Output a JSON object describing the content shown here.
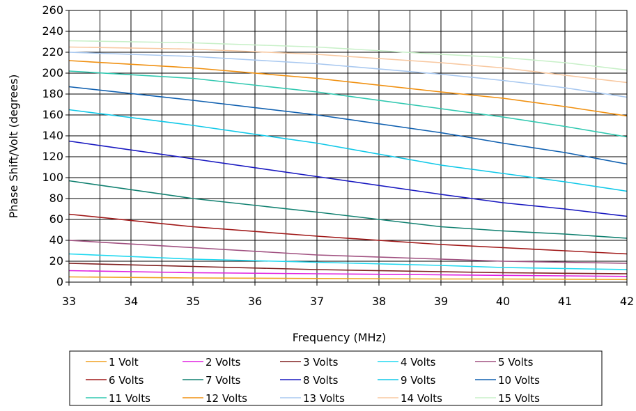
{
  "chart_data": {
    "type": "line",
    "title": "",
    "xlabel": "Frequency (MHz)",
    "ylabel": "Phase Shift/Volt (degrees)",
    "xlim": [
      33,
      42
    ],
    "ylim": [
      0,
      260
    ],
    "x_ticks": [
      "33",
      "34",
      "35",
      "36",
      "37",
      "38",
      "39",
      "40",
      "41",
      "42"
    ],
    "y_ticks": [
      "0",
      "20",
      "40",
      "60",
      "80",
      "100",
      "120",
      "140",
      "160",
      "180",
      "200",
      "220",
      "240",
      "260"
    ],
    "x_minor_step": 0.5,
    "grid": true,
    "legend_position": "bottom",
    "x": [
      33,
      35,
      37,
      39,
      40,
      41,
      42
    ],
    "series": [
      {
        "name": "1 Volt",
        "color": "#F0A020",
        "values": [
          5,
          4,
          3.5,
          3,
          3,
          2.8,
          2.5
        ]
      },
      {
        "name": "2 Volts",
        "color": "#E020E0",
        "values": [
          11,
          9,
          8,
          7,
          6.5,
          6,
          5.5
        ]
      },
      {
        "name": "3 Volts",
        "color": "#802020",
        "values": [
          18,
          15,
          12,
          10,
          9,
          8.5,
          8
        ]
      },
      {
        "name": "4 Volts",
        "color": "#20D8F0",
        "values": [
          27,
          22,
          19,
          16,
          14,
          13,
          12
        ]
      },
      {
        "name": "5 Volts",
        "color": "#A05080",
        "values": [
          40,
          33,
          26,
          22,
          20,
          19,
          18
        ]
      },
      {
        "name": "6 Volts",
        "color": "#A01818",
        "values": [
          65,
          53,
          44,
          36,
          33,
          30,
          27
        ]
      },
      {
        "name": "7 Volts",
        "color": "#108070",
        "values": [
          97,
          80,
          67,
          53,
          49,
          46,
          42
        ]
      },
      {
        "name": "8 Volts",
        "color": "#1818C0",
        "values": [
          135,
          118,
          101,
          84,
          76,
          70,
          63
        ]
      },
      {
        "name": "9 Volts",
        "color": "#10C8E8",
        "values": [
          165,
          150,
          133,
          112,
          104,
          96,
          87
        ]
      },
      {
        "name": "10 Volts",
        "color": "#1060B0",
        "values": [
          187,
          174,
          160,
          143,
          133,
          124,
          113
        ]
      },
      {
        "name": "11 Volts",
        "color": "#30C8B0",
        "values": [
          202,
          195,
          182,
          166,
          158,
          149,
          139
        ]
      },
      {
        "name": "12 Volts",
        "color": "#F09010",
        "values": [
          212,
          205,
          195,
          182,
          176,
          168,
          159
        ]
      },
      {
        "name": "13 Volts",
        "color": "#A8C8F0",
        "values": [
          220,
          216,
          209,
          199,
          193,
          186,
          177
        ]
      },
      {
        "name": "14 Volts",
        "color": "#F8C8A0",
        "values": [
          225,
          223,
          218,
          210,
          205,
          198,
          191
        ]
      },
      {
        "name": "15 Volts",
        "color": "#C8F0C8",
        "values": [
          231,
          229,
          225,
          218,
          215,
          210,
          203
        ]
      }
    ]
  }
}
